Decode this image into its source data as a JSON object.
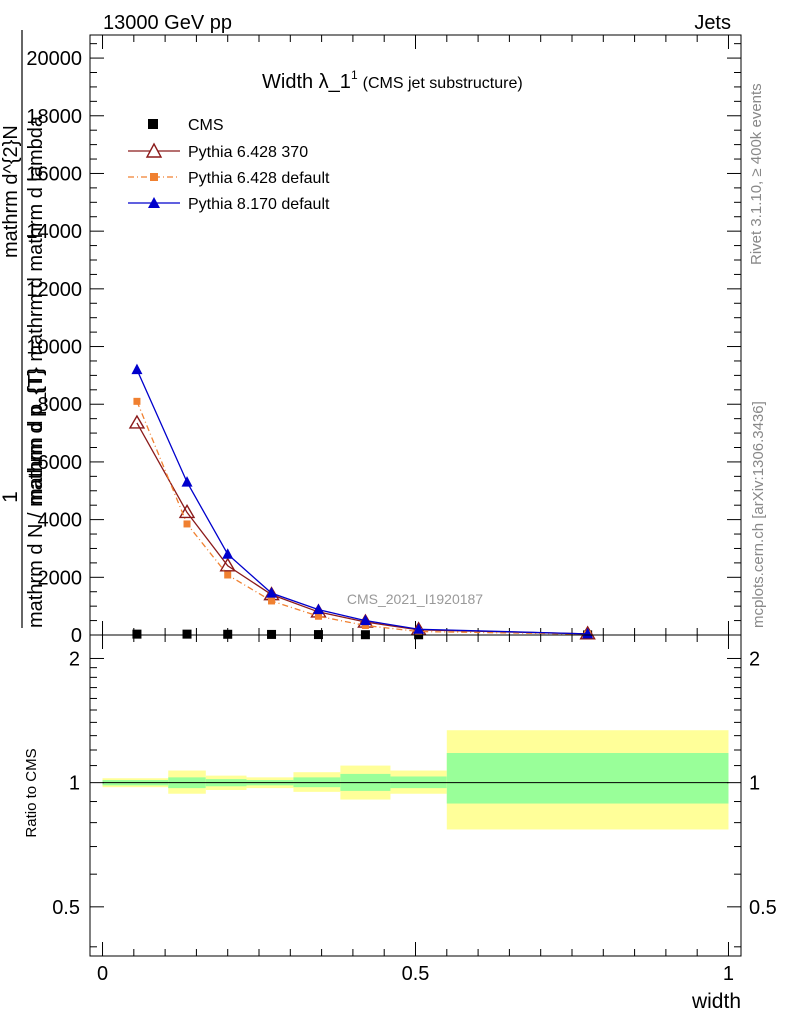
{
  "header": {
    "left": "13000 GeV pp",
    "right": "Jets"
  },
  "title": {
    "main": "Width λ_1",
    "sup": "1",
    "sub": "(CMS jet substructure)"
  },
  "side_labels": {
    "rivet": "Rivet 3.1.10, ≥ 400k events",
    "mcplots": "mcplots.cern.ch [arXiv:1306.3436]"
  },
  "watermark": "CMS_2021_I1920187",
  "upper_ylabel": {
    "line1": "mathrm d^{2}N",
    "line2": "mathrm d p_{T} mathrm d mathrm d lambda",
    "frac1": "1",
    "frac2": "mathrm d N / mathrm d p_{T}"
  },
  "ratio_ylabel": "Ratio to CMS",
  "xlabel": "width",
  "legend": [
    {
      "label": "CMS",
      "color": "#000000",
      "marker": "square-filled"
    },
    {
      "label": "Pythia 6.428 370",
      "color": "#8b1a1a",
      "marker": "triangle-open"
    },
    {
      "label": "Pythia 6.428 default",
      "color": "#f08030",
      "marker": "square-filled"
    },
    {
      "label": "Pythia 8.170 default",
      "color": "#0000cc",
      "marker": "triangle-filled"
    }
  ],
  "chart_data": [
    {
      "type": "line",
      "panel": "main",
      "xlim": [
        -0.02,
        1.02
      ],
      "ylim": [
        0,
        20800
      ],
      "y_ticks": [
        {
          "value": 0,
          "label": "0"
        },
        {
          "value": 2000,
          "label": "2000"
        },
        {
          "value": 4000,
          "label": "4000"
        },
        {
          "value": 6000,
          "label": "6000"
        },
        {
          "value": 8000,
          "label": "8000"
        },
        {
          "value": 10000,
          "label": "10000"
        },
        {
          "value": 12000,
          "label": "12000"
        },
        {
          "value": 14000,
          "label": "14000"
        },
        {
          "value": 16000,
          "label": "16000"
        },
        {
          "value": 18000,
          "label": "18000"
        },
        {
          "value": 20000,
          "label": "20000"
        }
      ],
      "series": [
        {
          "name": "CMS",
          "x": [
            0.055,
            0.135,
            0.2,
            0.27,
            0.345,
            0.42,
            0.505,
            0.775
          ],
          "values": [
            30,
            30,
            25,
            20,
            15,
            10,
            8,
            5
          ]
        },
        {
          "name": "Pythia 6.428 370",
          "x": [
            0.055,
            0.135,
            0.2,
            0.27,
            0.345,
            0.42,
            0.505,
            0.775
          ],
          "values": [
            7350,
            4250,
            2400,
            1400,
            800,
            450,
            180,
            40
          ]
        },
        {
          "name": "Pythia 6.428 default",
          "x": [
            0.055,
            0.135,
            0.2,
            0.27,
            0.345,
            0.42,
            0.505,
            0.775
          ],
          "values": [
            8100,
            3850,
            2080,
            1180,
            650,
            330,
            120,
            30
          ]
        },
        {
          "name": "Pythia 8.170 default",
          "x": [
            0.055,
            0.135,
            0.2,
            0.27,
            0.345,
            0.42,
            0.505,
            0.775
          ],
          "values": [
            9200,
            5300,
            2800,
            1450,
            880,
            500,
            200,
            40
          ]
        }
      ]
    },
    {
      "type": "area",
      "panel": "ratio",
      "xlim": [
        -0.02,
        1.02
      ],
      "ylim": [
        0.38,
        2.28
      ],
      "y_scale": "log",
      "y_ticks": [
        {
          "value": 0.5,
          "label": "0.5"
        },
        {
          "value": 1,
          "label": "1"
        },
        {
          "value": 2,
          "label": "2"
        }
      ],
      "x_ticks": [
        {
          "value": 0,
          "label": "0"
        },
        {
          "value": 0.5,
          "label": "0.5"
        },
        {
          "value": 1,
          "label": "1"
        }
      ],
      "reference": 1,
      "bins": [
        {
          "x0": 0.0,
          "x1": 0.105,
          "yellow": [
            0.975,
            1.025
          ],
          "green": [
            0.985,
            1.015
          ]
        },
        {
          "x0": 0.105,
          "x1": 0.165,
          "yellow": [
            0.94,
            1.07
          ],
          "green": [
            0.97,
            1.03
          ]
        },
        {
          "x0": 0.165,
          "x1": 0.23,
          "yellow": [
            0.96,
            1.04
          ],
          "green": [
            0.98,
            1.02
          ]
        },
        {
          "x0": 0.23,
          "x1": 0.305,
          "yellow": [
            0.97,
            1.03
          ],
          "green": [
            0.985,
            1.015
          ]
        },
        {
          "x0": 0.305,
          "x1": 0.38,
          "yellow": [
            0.95,
            1.06
          ],
          "green": [
            0.975,
            1.03
          ]
        },
        {
          "x0": 0.38,
          "x1": 0.46,
          "yellow": [
            0.91,
            1.1
          ],
          "green": [
            0.955,
            1.05
          ]
        },
        {
          "x0": 0.46,
          "x1": 0.55,
          "yellow": [
            0.94,
            1.07
          ],
          "green": [
            0.97,
            1.035
          ]
        },
        {
          "x0": 0.55,
          "x1": 1.0,
          "yellow": [
            0.77,
            1.34
          ],
          "green": [
            0.89,
            1.18
          ]
        }
      ]
    }
  ]
}
